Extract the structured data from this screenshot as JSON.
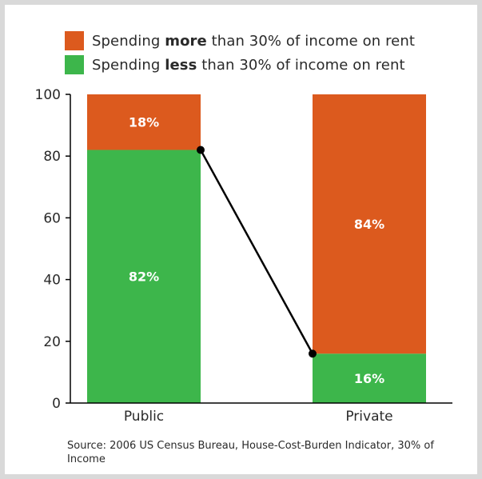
{
  "chart_data": {
    "type": "bar",
    "stacked": true,
    "categories": [
      "Public",
      "Private"
    ],
    "series": [
      {
        "name": "Spending less than 30% of income on rent",
        "legend_prefix": "Spending ",
        "legend_bold": "less",
        "legend_suffix": " than 30% of income on rent",
        "color": "#3db64b",
        "values": [
          82,
          16
        ],
        "labels": [
          "82%",
          "16%"
        ]
      },
      {
        "name": "Spending more than 30% of income on rent",
        "legend_prefix": "Spending ",
        "legend_bold": "more",
        "legend_suffix": " than 30% of income on rent",
        "color": "#dc5a1e",
        "values": [
          18,
          84
        ],
        "labels": [
          "18%",
          "84%"
        ]
      }
    ],
    "legend_order": [
      1,
      0
    ],
    "ylim": [
      0,
      100
    ],
    "yticks": [
      0,
      20,
      40,
      60,
      80,
      100
    ],
    "grid": false,
    "legend_position": "top-left",
    "connector_line": {
      "series": 0,
      "color": "#000000"
    },
    "source": "Source: 2006 US Census Bureau, House-Cost-Burden Indicator, 30% of Income"
  }
}
